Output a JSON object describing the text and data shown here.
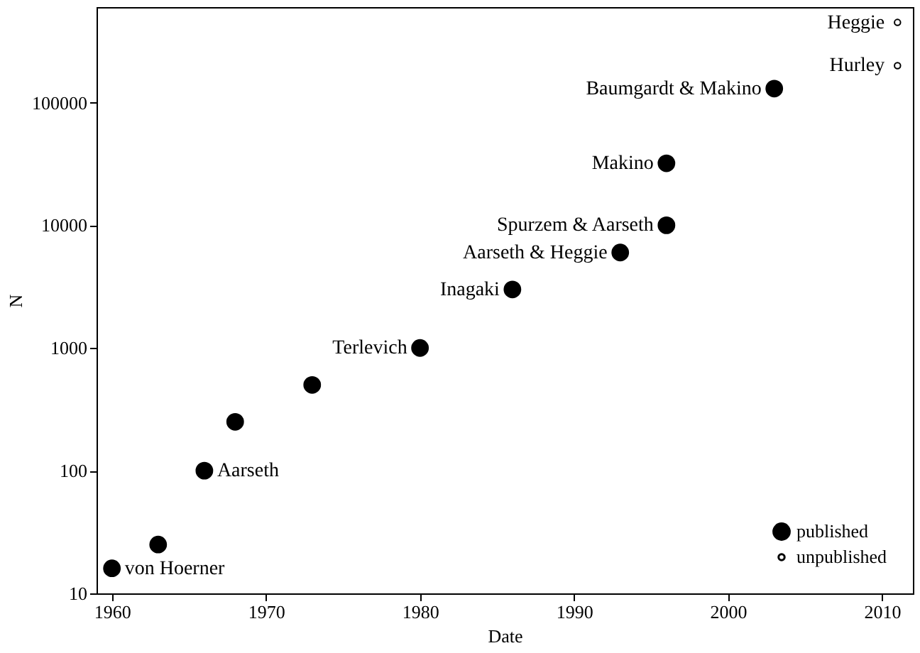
{
  "chart_data": {
    "type": "scatter",
    "xlabel": "Date",
    "ylabel": "N",
    "log": "y",
    "xlim": [
      1959,
      2012
    ],
    "xticks": [
      1960,
      1970,
      1980,
      1990,
      2000,
      2010
    ],
    "ylim": [
      10,
      600000
    ],
    "yticks": [
      10,
      100,
      1000,
      10000,
      100000
    ],
    "grid": false,
    "legend": "bottom right",
    "marker": "circle",
    "series": [
      {
        "name": "published",
        "color": "#000000",
        "x": [
          1960,
          1963,
          1966,
          1968,
          1973,
          1980,
          1986,
          1993,
          1996,
          1996,
          2003
        ],
        "values": [
          16,
          25,
          100,
          250,
          500,
          1000,
          3000,
          6000,
          10000,
          32000,
          130000
        ]
      },
      {
        "name": "unpublished",
        "color": "#000000",
        "x": [
          2011,
          2011
        ],
        "values": [
          450000,
          200000
        ]
      }
    ],
    "annotations": [
      {
        "text": "von Hoerner",
        "x": 1960,
        "y": 16
      },
      {
        "text": "Aarseth",
        "x": 1966,
        "y": 100
      },
      {
        "text": "Terlevich",
        "x": 1980,
        "y": 1000
      },
      {
        "text": "Inagaki",
        "x": 1986,
        "y": 3000
      },
      {
        "text": "Aarseth & Heggie",
        "x": 1993,
        "y": 6000
      },
      {
        "text": "Spurzem & Aarseth",
        "x": 1996,
        "y": 10000
      },
      {
        "text": "Makino",
        "x": 1996,
        "y": 32000
      },
      {
        "text": "Baumgardt & Makino",
        "x": 2003,
        "y": 130000
      },
      {
        "text": "Heggie",
        "x": 2011,
        "y": 450000
      },
      {
        "text": "Hurley",
        "x": 2011,
        "y": 200000
      }
    ]
  }
}
